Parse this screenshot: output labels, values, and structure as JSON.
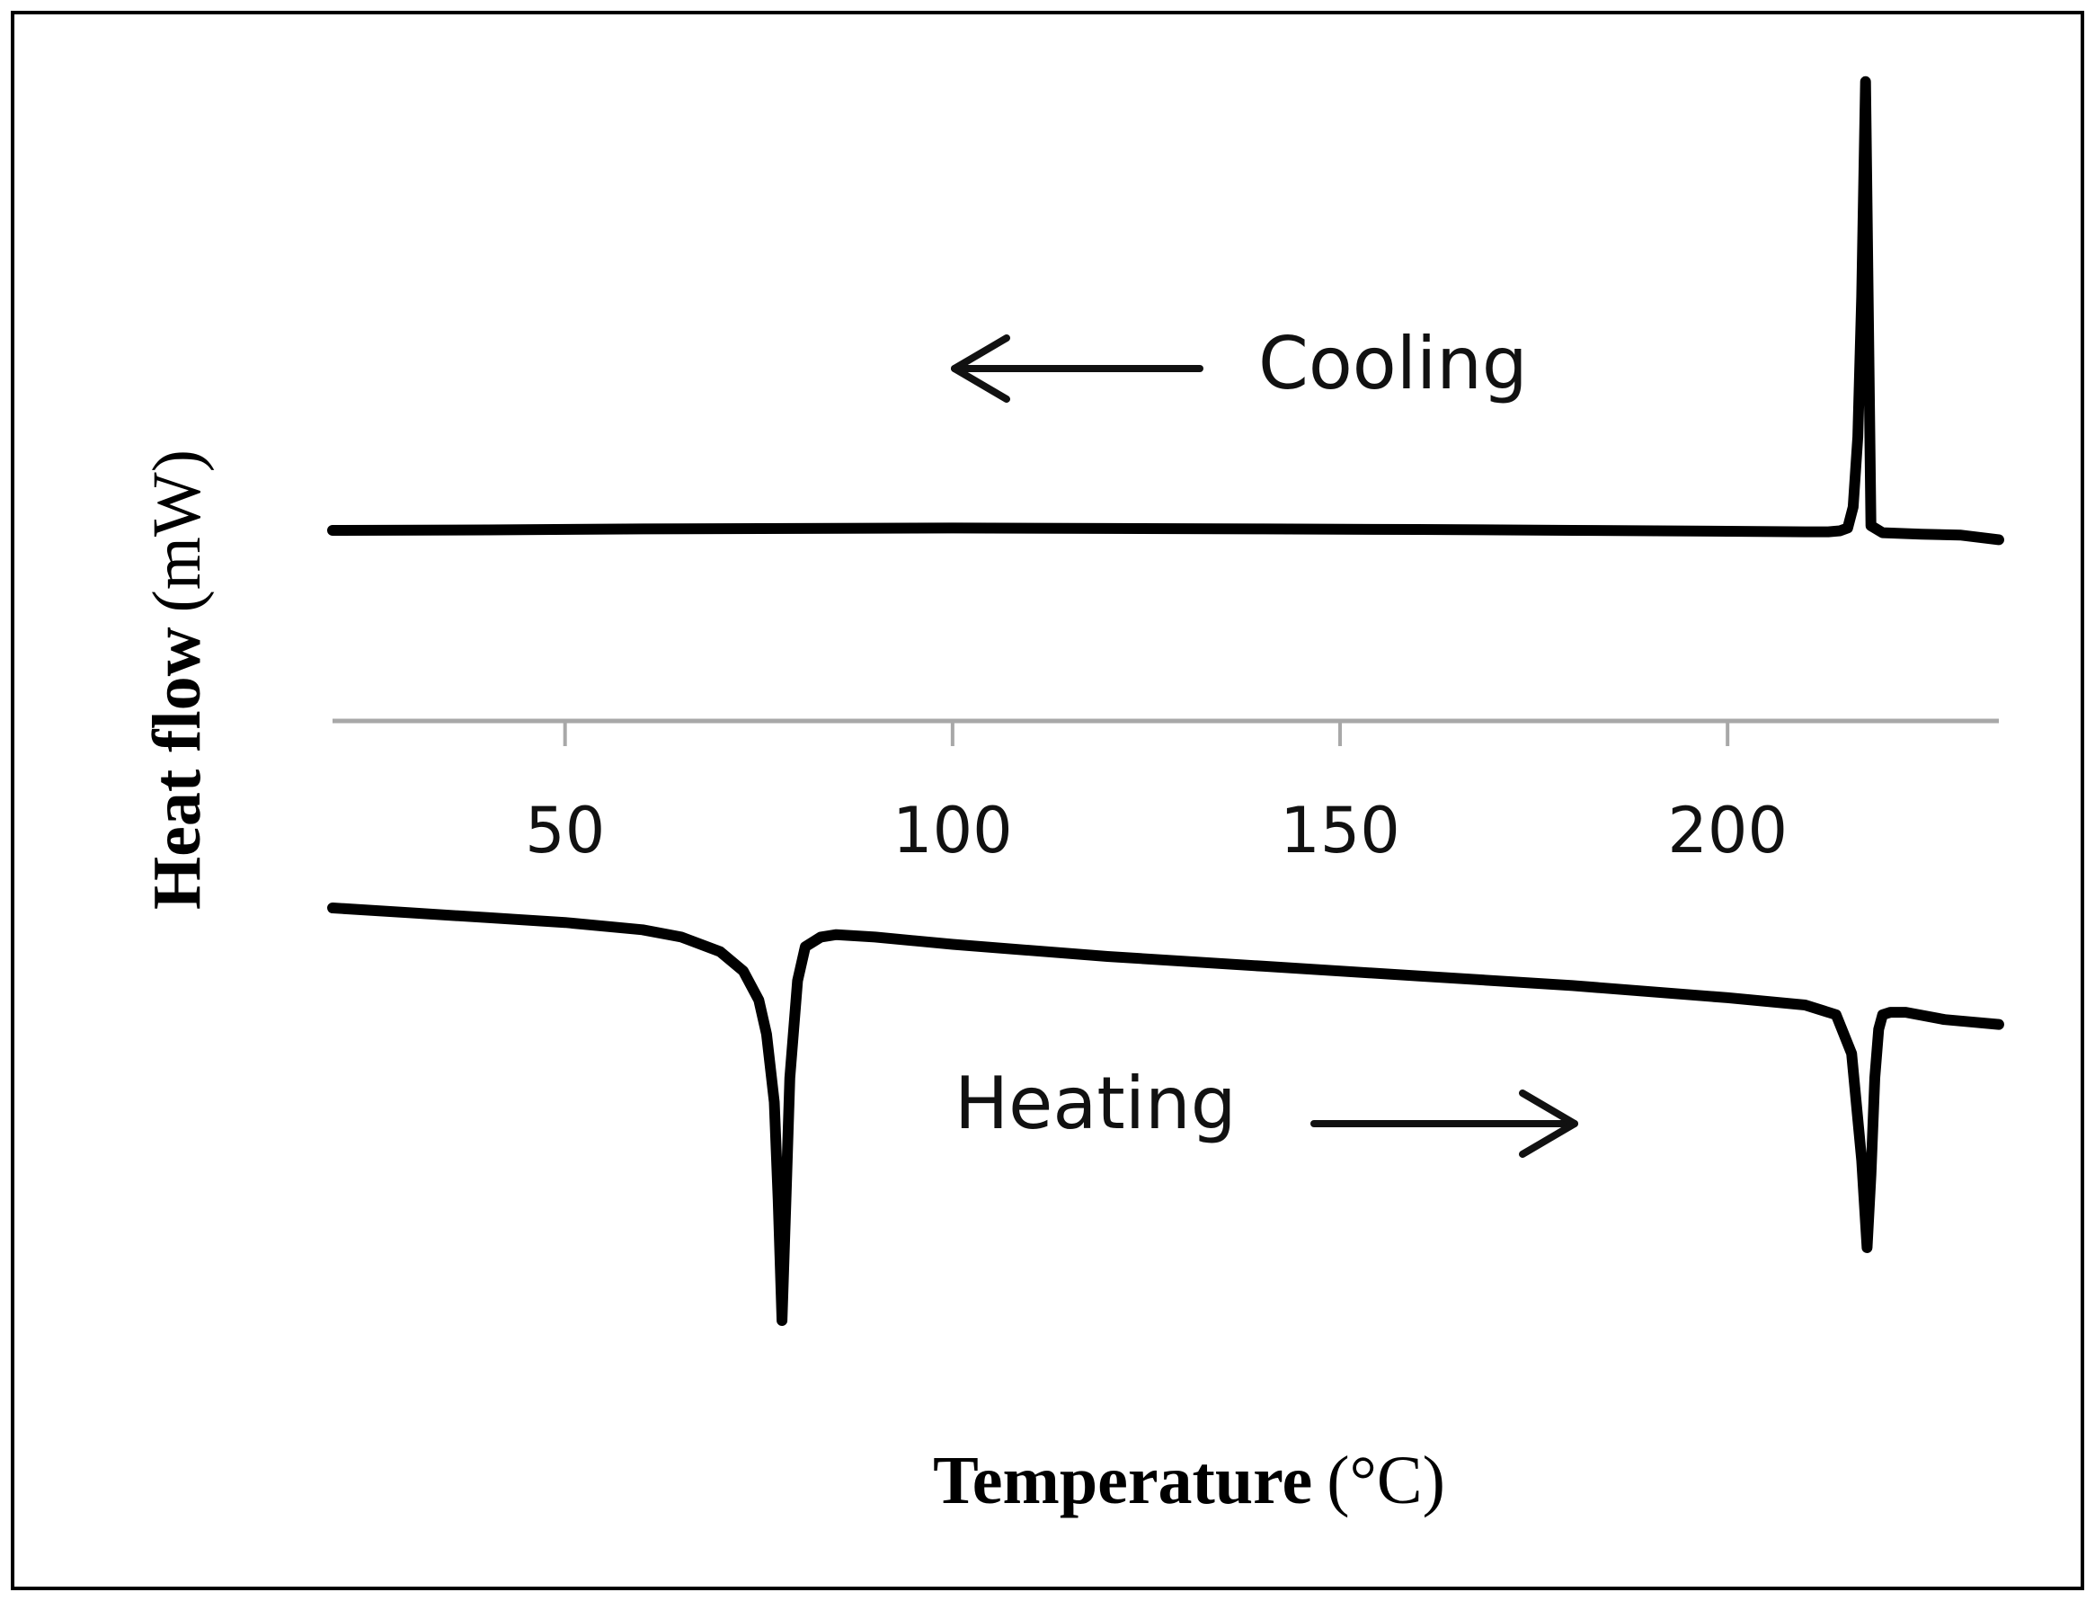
{
  "chart_data": {
    "type": "line",
    "title": "",
    "xlabel": {
      "main": "Temperature",
      "unit": "(°C)"
    },
    "ylabel": {
      "main": "Heat flow",
      "unit": "(mW)"
    },
    "xlim": [
      20,
      235
    ],
    "x_ticks": [
      50,
      100,
      150,
      200
    ],
    "x_tick_labels": [
      "50",
      "100",
      "150",
      "200"
    ],
    "y_ticks_shown": false,
    "grid": false,
    "legend": "none",
    "annotations": [
      {
        "text": "Cooling",
        "arrow_direction": "left"
      },
      {
        "text": "Heating",
        "arrow_direction": "right"
      }
    ],
    "series": [
      {
        "name": "Cooling",
        "color": "#000000",
        "x": [
          20,
          40,
          60,
          80,
          100,
          120,
          140,
          160,
          180,
          200,
          210,
          213,
          214.5,
          215.5,
          216.2,
          216.8,
          217.3,
          217.8,
          218.5,
          220,
          225,
          230,
          235
        ],
        "y": [
          0.0,
          0.01,
          0.03,
          0.04,
          0.05,
          0.04,
          0.03,
          0.02,
          0.0,
          -0.02,
          -0.03,
          -0.03,
          -0.01,
          0.05,
          0.5,
          2.0,
          5.0,
          9.6,
          0.1,
          -0.05,
          -0.08,
          -0.1,
          -0.2
        ]
      },
      {
        "name": "Heating",
        "color": "#000000",
        "x": [
          20,
          30,
          40,
          50,
          60,
          65,
          70,
          73,
          75,
          76,
          77,
          77.5,
          78,
          78.5,
          79,
          80,
          81,
          83,
          85,
          90,
          100,
          120,
          140,
          160,
          180,
          200,
          210,
          214,
          216,
          217.3,
          218,
          218.5,
          219,
          219.5,
          220,
          221,
          223,
          228,
          235
        ],
        "y": [
          0.0,
          -0.1,
          -0.2,
          -0.3,
          -0.45,
          -0.6,
          -0.9,
          -1.3,
          -1.9,
          -2.6,
          -4.0,
          -6.0,
          -8.5,
          -6.0,
          -3.5,
          -1.5,
          -0.8,
          -0.6,
          -0.55,
          -0.6,
          -0.75,
          -1.0,
          -1.2,
          -1.4,
          -1.6,
          -1.85,
          -2.0,
          -2.2,
          -3.0,
          -5.2,
          -7.0,
          -5.5,
          -3.5,
          -2.5,
          -2.2,
          -2.15,
          -2.15,
          -2.3,
          -2.4
        ]
      }
    ]
  }
}
